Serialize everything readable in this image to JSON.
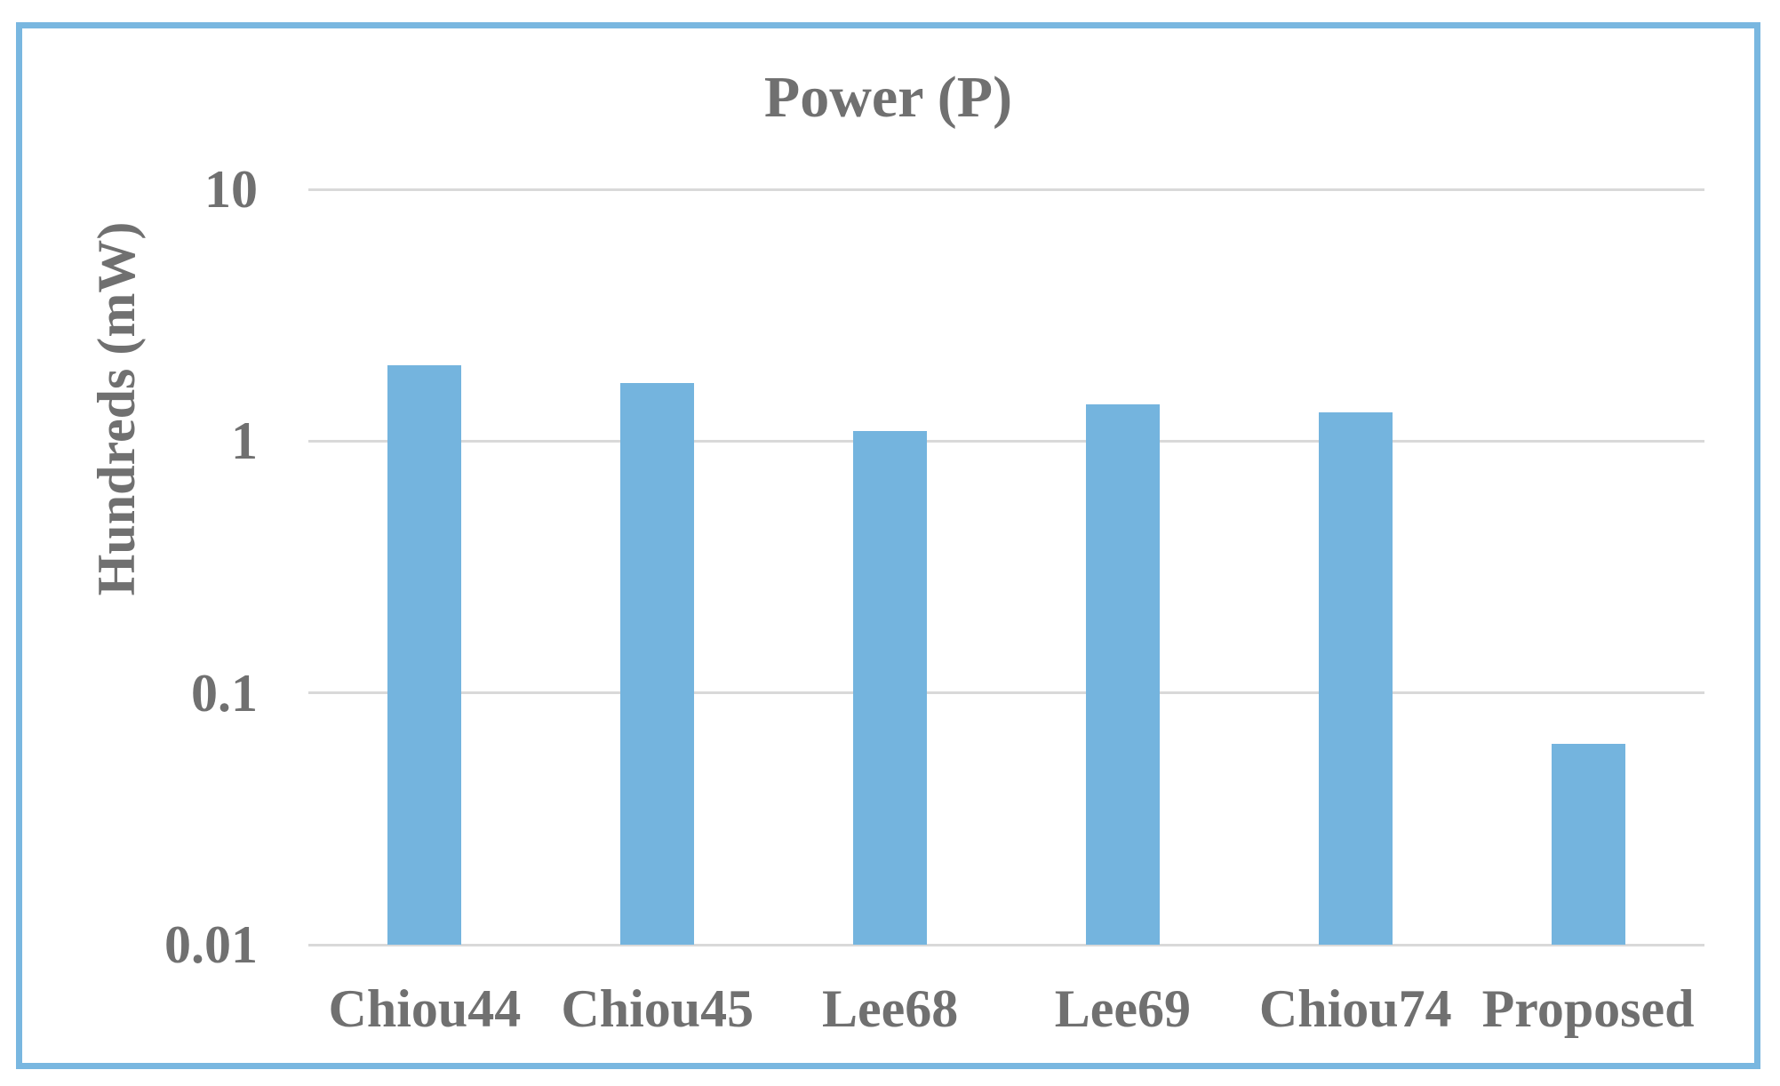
{
  "chart": {
    "title": "Power (P)",
    "y_axis_title": "Hundreds (mW)"
  },
  "chart_data": {
    "type": "bar",
    "title": "Power (P)",
    "xlabel": "",
    "ylabel": "Hundreds (mW)",
    "categories": [
      "Chiou44",
      "Chiou45",
      "Lee68",
      "Lee69",
      "Chiou74",
      "Proposed"
    ],
    "values": [
      2.0,
      1.7,
      1.1,
      1.4,
      1.3,
      0.063
    ],
    "y_scale": "log",
    "ylim": [
      0.01,
      10
    ],
    "yticks": [
      10,
      1,
      0.1,
      0.01
    ],
    "ytick_labels": [
      "10",
      "1",
      "0.1",
      "0.01"
    ],
    "grid": true,
    "legend": false,
    "colors": {
      "bar": "#74B4DE",
      "frame_border": "#79B7E0",
      "gridline": "#D9D9D9",
      "text": "#707070"
    }
  }
}
